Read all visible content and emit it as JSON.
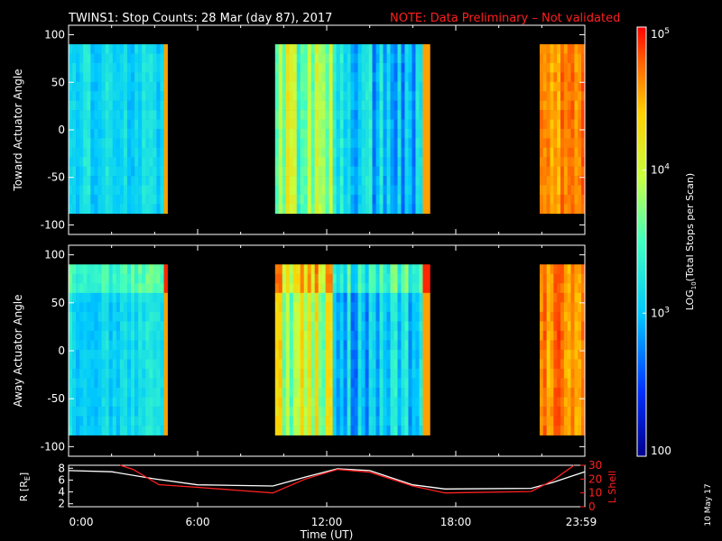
{
  "header": {
    "title": "TWINS1: Stop Counts: 28 Mar (day  87), 2017",
    "note": "NOTE: Data Preliminary – Not validated"
  },
  "side_date": "10 May 17",
  "chart_data": [
    {
      "type": "heatmap",
      "ylabel": "Toward Actuator Angle",
      "ylim": [
        -110,
        110
      ],
      "yticks": [
        "100",
        "50",
        "0",
        "-50",
        "-100"
      ],
      "x_range_hours": [
        0,
        24
      ],
      "angle_range": [
        -88,
        90
      ],
      "data_segments_hours": [
        [
          0,
          4.6
        ],
        [
          9.6,
          16.8
        ],
        [
          21.9,
          24
        ]
      ],
      "colorscale": {
        "label_main": "LOG",
        "label_sub": "10",
        "label_rest": "(Total Stops per Scan)",
        "min": 100,
        "max": 100000,
        "scale": "log",
        "ticks": [
          {
            "base": "10",
            "exp": "5"
          },
          {
            "base": "10",
            "exp": "4"
          },
          {
            "base": "10",
            "exp": "3"
          },
          {
            "base": "100",
            "exp": ""
          }
        ]
      }
    },
    {
      "type": "heatmap",
      "ylabel": "Away Actuator Angle",
      "ylim": [
        -110,
        110
      ],
      "yticks": [
        "100",
        "50",
        "0",
        "-50",
        "-100"
      ],
      "x_range_hours": [
        0,
        24
      ],
      "angle_range": [
        -88,
        90
      ],
      "data_segments_hours": [
        [
          0,
          4.6
        ],
        [
          9.6,
          16.8
        ],
        [
          21.9,
          24
        ]
      ]
    },
    {
      "type": "line",
      "ylabel_left": "R [R",
      "ylabel_left_sub": "E",
      "ylabel_left_end": "]",
      "ylabel_right": "L Shell",
      "yticks_left": [
        "8",
        "6",
        "4",
        "2"
      ],
      "yticks_right": [
        "30",
        "20",
        "10",
        "0"
      ],
      "ylim_left": [
        1.5,
        8.5
      ],
      "ylim_right": [
        0,
        30
      ],
      "xlabel": "Time (UT)",
      "xticks": [
        "0:00",
        "6:00",
        "12:00",
        "18:00",
        "23:59"
      ],
      "series": [
        {
          "color": "#ffffff",
          "x": [
            0,
            2,
            4,
            6,
            9.5,
            11,
            12.5,
            14,
            16,
            17.5,
            21.5,
            22.5,
            24
          ],
          "y": [
            7.6,
            7.4,
            6.2,
            5.2,
            5.0,
            6.5,
            7.9,
            7.6,
            5.2,
            4.5,
            4.6,
            5.6,
            7.4
          ]
        },
        {
          "color": "#ff2020",
          "x": [
            2.4,
            3,
            4.2,
            6,
            9.5,
            11,
            12.5,
            14,
            16,
            17.5,
            21.5,
            22.5,
            23.5
          ],
          "y": [
            30,
            27,
            16,
            14,
            10,
            20,
            27,
            25,
            15,
            10,
            11,
            19,
            30
          ]
        }
      ]
    }
  ]
}
